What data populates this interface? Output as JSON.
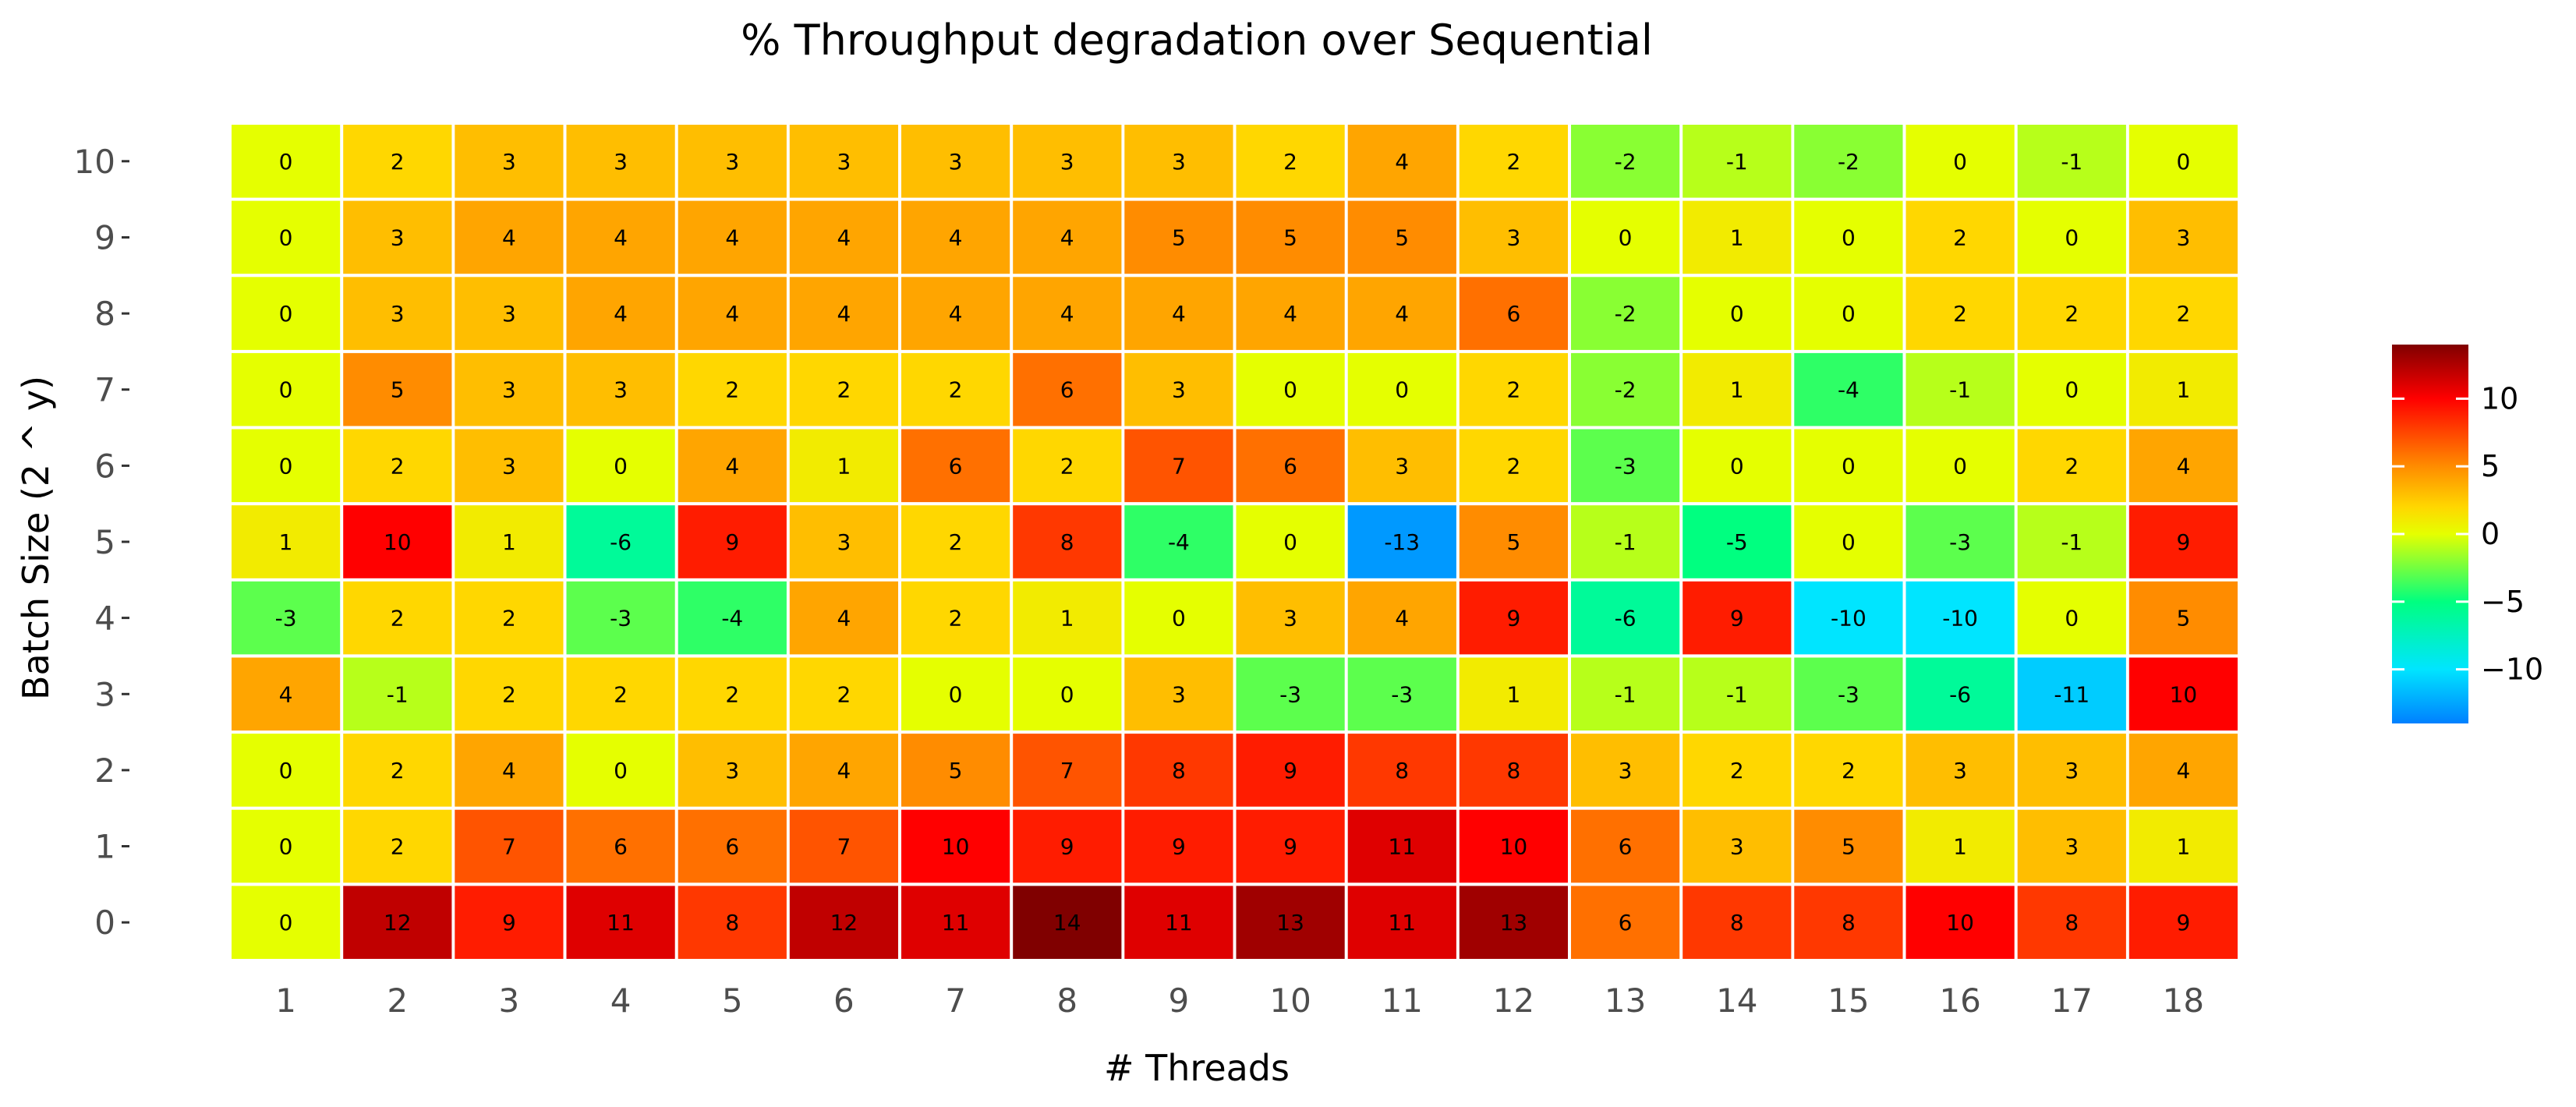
{
  "chart_data": {
    "type": "heatmap",
    "title": "% Throughput degradation over Sequential",
    "xlabel": "# Threads",
    "ylabel": "Batch Size (2 ^ y)",
    "x": [
      "1",
      "2",
      "3",
      "4",
      "5",
      "6",
      "7",
      "8",
      "9",
      "10",
      "11",
      "12",
      "13",
      "14",
      "15",
      "16",
      "17",
      "18"
    ],
    "y": [
      "0",
      "1",
      "2",
      "3",
      "4",
      "5",
      "6",
      "7",
      "8",
      "9",
      "10"
    ],
    "values": [
      [
        0,
        12,
        9,
        11,
        8,
        12,
        11,
        14,
        11,
        13,
        11,
        13,
        6,
        8,
        8,
        10,
        8,
        9
      ],
      [
        0,
        2,
        7,
        6,
        6,
        7,
        10,
        9,
        9,
        9,
        11,
        10,
        6,
        3,
        5,
        1,
        3,
        1
      ],
      [
        0,
        2,
        4,
        0,
        3,
        4,
        5,
        7,
        8,
        9,
        8,
        8,
        3,
        2,
        2,
        3,
        3,
        4
      ],
      [
        4,
        -1,
        2,
        2,
        2,
        2,
        0,
        0,
        3,
        -3,
        -3,
        1,
        -1,
        -1,
        -3,
        -6,
        -11,
        10
      ],
      [
        -3,
        2,
        2,
        -3,
        -4,
        4,
        2,
        1,
        0,
        3,
        4,
        9,
        -6,
        9,
        -10,
        -10,
        0,
        5
      ],
      [
        1,
        10,
        1,
        -6,
        9,
        3,
        2,
        8,
        -4,
        0,
        -13,
        5,
        -1,
        -5,
        0,
        -3,
        -1,
        9
      ],
      [
        0,
        2,
        3,
        0,
        4,
        1,
        6,
        2,
        7,
        6,
        3,
        2,
        -3,
        0,
        0,
        0,
        2,
        4
      ],
      [
        0,
        5,
        3,
        3,
        2,
        2,
        2,
        6,
        3,
        0,
        0,
        2,
        -2,
        1,
        -4,
        -1,
        0,
        1
      ],
      [
        0,
        3,
        3,
        4,
        4,
        4,
        4,
        4,
        4,
        4,
        4,
        6,
        -2,
        0,
        0,
        2,
        2,
        2
      ],
      [
        0,
        3,
        4,
        4,
        4,
        4,
        4,
        4,
        5,
        5,
        5,
        3,
        0,
        1,
        0,
        2,
        0,
        3
      ],
      [
        0,
        2,
        3,
        3,
        3,
        3,
        3,
        3,
        3,
        2,
        4,
        2,
        -2,
        -1,
        -2,
        0,
        -1,
        0
      ]
    ],
    "color_scale": {
      "range": [
        -14,
        14
      ],
      "stops": [
        {
          "value": -14,
          "color": "#0080ff"
        },
        {
          "value": -10,
          "color": "#00e5ff"
        },
        {
          "value": -5,
          "color": "#00ff80"
        },
        {
          "value": 0,
          "color": "#e5ff00"
        },
        {
          "value": 2,
          "color": "#ffd700"
        },
        {
          "value": 5,
          "color": "#ff8c00"
        },
        {
          "value": 10,
          "color": "#ff0000"
        },
        {
          "value": 14,
          "color": "#800000"
        }
      ]
    },
    "legend": {
      "placement": "right",
      "ticks": [
        "10",
        "5",
        "0",
        "−5",
        "−10"
      ],
      "tick_values": [
        10,
        5,
        0,
        -5,
        -10
      ]
    },
    "grid": false
  }
}
